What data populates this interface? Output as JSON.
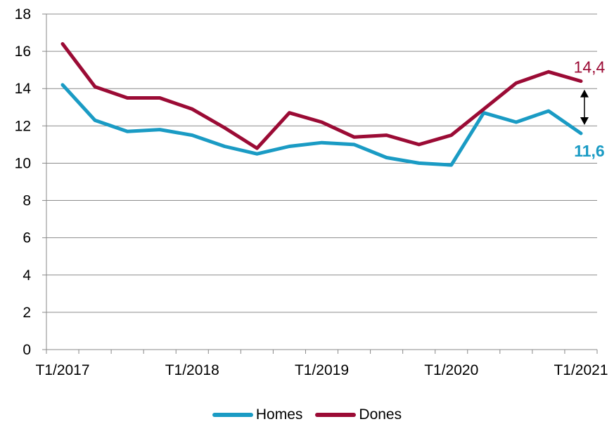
{
  "chart_data": {
    "type": "line",
    "x": [
      "T1/2017",
      "T2/2017",
      "T3/2017",
      "T4/2017",
      "T1/2018",
      "T2/2018",
      "T3/2018",
      "T4/2018",
      "T1/2019",
      "T2/2019",
      "T3/2019",
      "T4/2019",
      "T1/2020",
      "T2/2020",
      "T3/2020",
      "T4/2020",
      "T1/2021"
    ],
    "x_tick_labels": [
      "T1/2017",
      "T1/2018",
      "T1/2019",
      "T1/2020",
      "T1/2021"
    ],
    "y_ticks": [
      "0",
      "2",
      "4",
      "6",
      "8",
      "10",
      "12",
      "14",
      "16",
      "18"
    ],
    "ylim": [
      0,
      18
    ],
    "grid": "horizontal",
    "legend_position": "bottom",
    "series": [
      {
        "name": "Homes",
        "color": "#1a9bc4",
        "values": [
          14.2,
          12.3,
          11.7,
          11.8,
          11.5,
          10.9,
          10.5,
          10.9,
          11.1,
          11.0,
          10.3,
          10.0,
          9.9,
          12.7,
          12.2,
          12.8,
          11.6
        ],
        "end_label": "11,6"
      },
      {
        "name": "Dones",
        "color": "#9b0b35",
        "values": [
          16.4,
          14.1,
          13.5,
          13.5,
          12.9,
          11.9,
          10.8,
          12.7,
          12.2,
          11.4,
          11.5,
          11.0,
          11.5,
          12.9,
          14.3,
          14.9,
          14.4
        ],
        "end_label": "14,4"
      }
    ]
  }
}
